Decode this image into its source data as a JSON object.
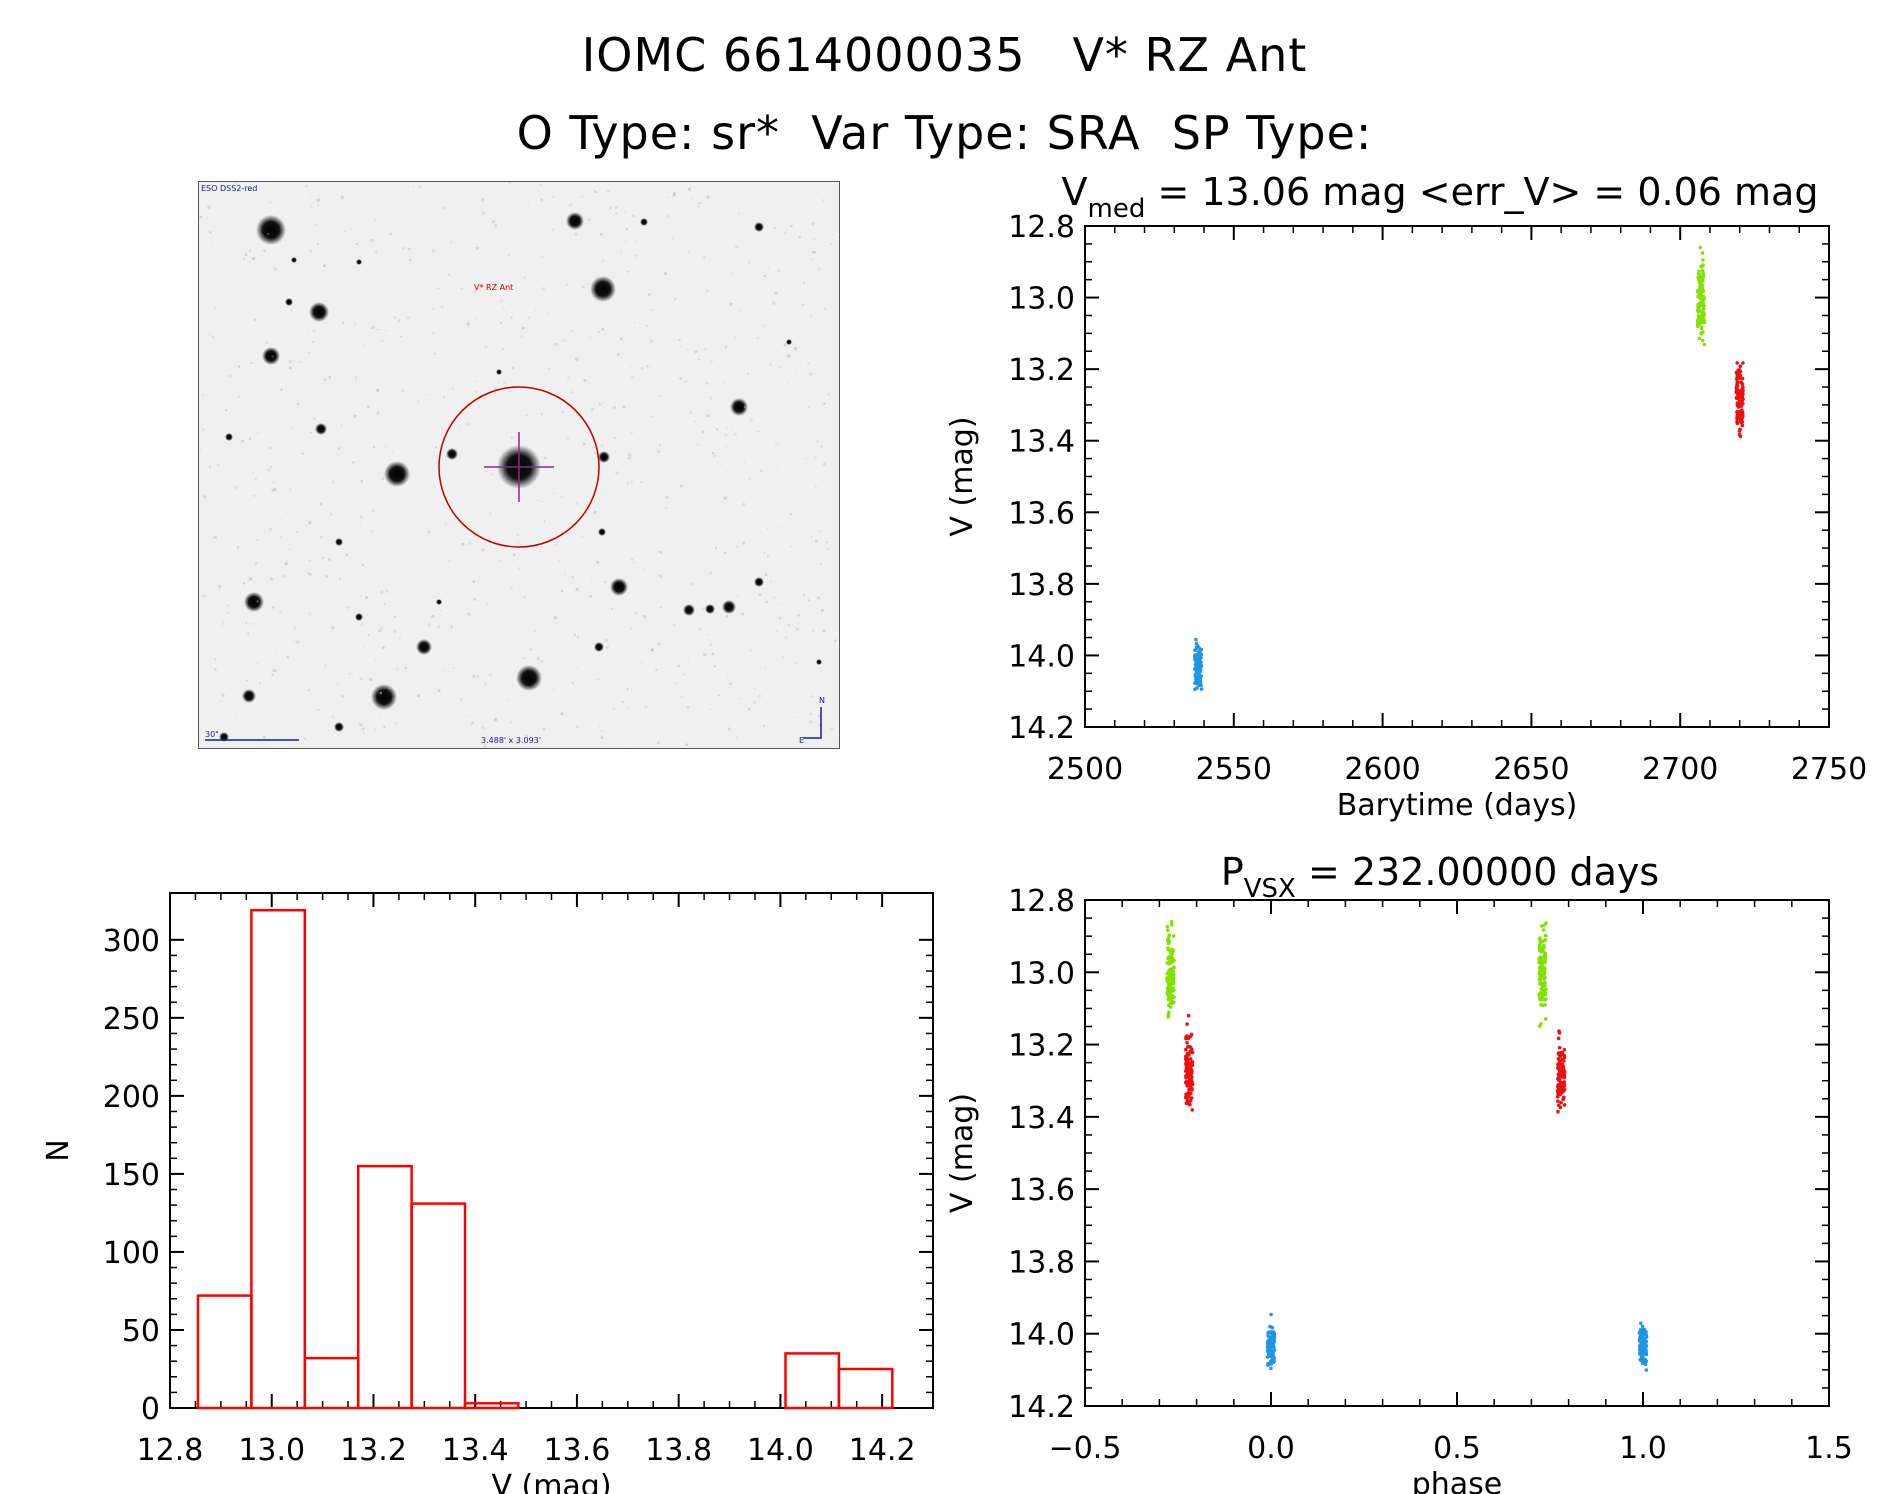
{
  "header": {
    "line1": "IOMC 6614000035   V* RZ Ant",
    "line2": "O Type: sr*  Var Type: SRA  SP Type:"
  },
  "image_panel": {
    "survey_label": "ESO DSS2-red",
    "target_label": "V* RZ Ant",
    "scale_label": "30\"",
    "fov_label": "3.488' x 3.093'",
    "north": "N",
    "east": "E"
  },
  "colors": {
    "hist": "#ff0000",
    "group_green": "#7fe300",
    "group_red": "#ee1111",
    "group_blue": "#1e96e6",
    "circle": "#c00000"
  },
  "chart_data": [
    {
      "type": "scatter",
      "id": "lightcurve",
      "title_main": "V",
      "title_sub": "med",
      "title_rest": " = 13.06 mag <err_V> = 0.06 mag",
      "xlabel": "Barytime (days)",
      "ylabel": "V (mag)",
      "xlim": [
        2500,
        2750
      ],
      "ylim": [
        12.8,
        14.2
      ],
      "y_inverted": true,
      "xticks": [
        2500,
        2550,
        2600,
        2650,
        2700,
        2750
      ],
      "yticks": [
        12.8,
        13.0,
        13.2,
        13.4,
        13.6,
        13.8,
        14.0,
        14.2
      ],
      "groups": [
        {
          "color": "#7fe300",
          "x": 2707,
          "y_min": 12.86,
          "y_max": 13.19,
          "y_center": 13.0
        },
        {
          "color": "#ee1111",
          "x": 2720,
          "y_min": 13.12,
          "y_max": 13.41,
          "y_center": 13.28
        },
        {
          "color": "#1e96e6",
          "x": 2538,
          "y_min": 13.94,
          "y_max": 14.11,
          "y_center": 14.03
        }
      ]
    },
    {
      "type": "bar",
      "id": "histogram",
      "xlabel": "V (mag)",
      "ylabel": "N",
      "xlim": [
        12.8,
        14.3
      ],
      "ylim": [
        0,
        330
      ],
      "xticks": [
        12.8,
        13.0,
        13.2,
        13.4,
        13.6,
        13.8,
        14.0,
        14.2
      ],
      "yticks": [
        0,
        50,
        100,
        150,
        200,
        250,
        300
      ],
      "bin_width": 0.105,
      "bin_edges_start": 12.855,
      "counts": [
        72,
        319,
        32,
        155,
        131,
        3,
        0,
        0,
        0,
        0,
        0,
        35,
        25
      ]
    },
    {
      "type": "scatter",
      "id": "phased",
      "title_main": "P",
      "title_sub": "VSX",
      "title_rest": " = 232.00000 days",
      "xlabel": "phase",
      "ylabel": "V (mag)",
      "xlim": [
        -0.5,
        1.5
      ],
      "ylim": [
        12.8,
        14.2
      ],
      "y_inverted": true,
      "xticks": [
        -0.5,
        0.0,
        0.5,
        1.0,
        1.5
      ],
      "ytick_labels": [
        "12.8",
        "13.0",
        "13.2",
        "13.4",
        "13.6",
        "13.8",
        "14.0",
        "14.2"
      ],
      "xtick_labels": [
        "−0.5",
        "0.0",
        "0.5",
        "1.0",
        "1.5"
      ],
      "groups": [
        {
          "color": "#7fe300",
          "x": -0.27,
          "y_min": 12.86,
          "y_max": 13.19,
          "y_center": 13.0
        },
        {
          "color": "#ee1111",
          "x": -0.22,
          "y_min": 13.12,
          "y_max": 13.41,
          "y_center": 13.28
        },
        {
          "color": "#1e96e6",
          "x": 0.0,
          "y_min": 13.94,
          "y_max": 14.11,
          "y_center": 14.03
        },
        {
          "color": "#7fe300",
          "x": 0.73,
          "y_min": 12.86,
          "y_max": 13.19,
          "y_center": 13.0
        },
        {
          "color": "#ee1111",
          "x": 0.78,
          "y_min": 13.12,
          "y_max": 13.41,
          "y_center": 13.28
        },
        {
          "color": "#1e96e6",
          "x": 1.0,
          "y_min": 13.94,
          "y_max": 14.11,
          "y_center": 14.03
        }
      ]
    }
  ]
}
